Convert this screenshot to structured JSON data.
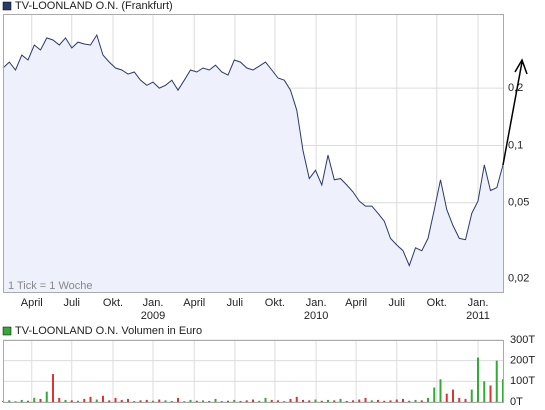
{
  "chart_data": [
    {
      "type": "line",
      "title": "TV-LOONLAND O.N. (Frankfurt)",
      "color": "#2b3a67",
      "area_color": "#eef1fb",
      "annotation": "1 Tick = 1 Woche",
      "log_scale": true,
      "grid": true,
      "values": [
        0.255,
        0.274,
        0.249,
        0.298,
        0.281,
        0.337,
        0.317,
        0.367,
        0.358,
        0.337,
        0.367,
        0.325,
        0.349,
        0.341,
        0.337,
        0.38,
        0.298,
        0.274,
        0.255,
        0.249,
        0.237,
        0.243,
        0.22,
        0.207,
        0.215,
        0.2,
        0.207,
        0.22,
        0.195,
        0.22,
        0.249,
        0.243,
        0.255,
        0.249,
        0.264,
        0.243,
        0.234,
        0.281,
        0.274,
        0.255,
        0.249,
        0.261,
        0.274,
        0.249,
        0.226,
        0.22,
        0.195,
        0.153,
        0.094,
        0.067,
        0.074,
        0.062,
        0.089,
        0.066,
        0.067,
        0.062,
        0.057,
        0.051,
        0.048,
        0.048,
        0.044,
        0.04,
        0.0325,
        0.03,
        0.028,
        0.0234,
        0.029,
        0.028,
        0.0325,
        0.046,
        0.066,
        0.046,
        0.038,
        0.0325,
        0.032,
        0.044,
        0.051,
        0.079,
        0.058,
        0.06,
        0.079
      ],
      "xlim": [
        0,
        80
      ],
      "xticks": [
        {
          "value": 4.6,
          "label": "April"
        },
        {
          "value": 11,
          "label": "Juli"
        },
        {
          "value": 17.6,
          "label": "Okt."
        },
        {
          "value": 24,
          "label": "Jan."
        },
        {
          "value": 30.6,
          "label": "April"
        },
        {
          "value": 37.1,
          "label": "Juli"
        },
        {
          "value": 43.5,
          "label": "Okt."
        },
        {
          "value": 50.1,
          "label": "Jan."
        },
        {
          "value": 56.5,
          "label": "April"
        },
        {
          "value": 63,
          "label": "Juli"
        },
        {
          "value": 69.4,
          "label": "Okt."
        },
        {
          "value": 76,
          "label": "Jan."
        }
      ],
      "xyears": [
        {
          "value": 24,
          "label": "2009"
        },
        {
          "value": 50.1,
          "label": "2010"
        },
        {
          "value": 76,
          "label": "2011"
        }
      ],
      "ylim": [
        0.017,
        0.49
      ],
      "yticks": [
        {
          "value": 0.2,
          "label": "0,2"
        },
        {
          "value": 0.1,
          "label": "0,1"
        },
        {
          "value": 0.05,
          "label": "0,05"
        },
        {
          "value": 0.02,
          "label": "0,02"
        }
      ]
    },
    {
      "type": "bar",
      "title": "TV-LOONLAND O.N. Volumen in Euro",
      "up_color": "#33aa33",
      "down_color": "#dd3333",
      "values": [
        5000,
        8000,
        3000,
        10000,
        6000,
        20000,
        15000,
        50000,
        135000,
        20000,
        10000,
        8000,
        6000,
        15000,
        25000,
        12000,
        30000,
        8000,
        20000,
        10000,
        15000,
        5000,
        8000,
        10000,
        6000,
        12000,
        8000,
        5000,
        20000,
        4000,
        10000,
        6000,
        8000,
        5000,
        15000,
        4000,
        6000,
        10000,
        5000,
        8000,
        12000,
        6000,
        20000,
        10000,
        8000,
        4000,
        15000,
        25000,
        10000,
        8000,
        12000,
        6000,
        10000,
        8000,
        15000,
        5000,
        8000,
        12000,
        20000,
        8000,
        10000,
        6000,
        8000,
        12000,
        15000,
        6000,
        10000,
        8000,
        20000,
        70000,
        110000,
        40000,
        60000,
        20000,
        15000,
        60000,
        215000,
        100000,
        80000,
        200000,
        110000
      ],
      "ylim": [
        0,
        300000
      ],
      "yticks": [
        {
          "value": 0,
          "label": "0T"
        },
        {
          "value": 100000,
          "label": "100T"
        },
        {
          "value": 200000,
          "label": "200T"
        },
        {
          "value": 300000,
          "label": "300T"
        }
      ]
    }
  ]
}
